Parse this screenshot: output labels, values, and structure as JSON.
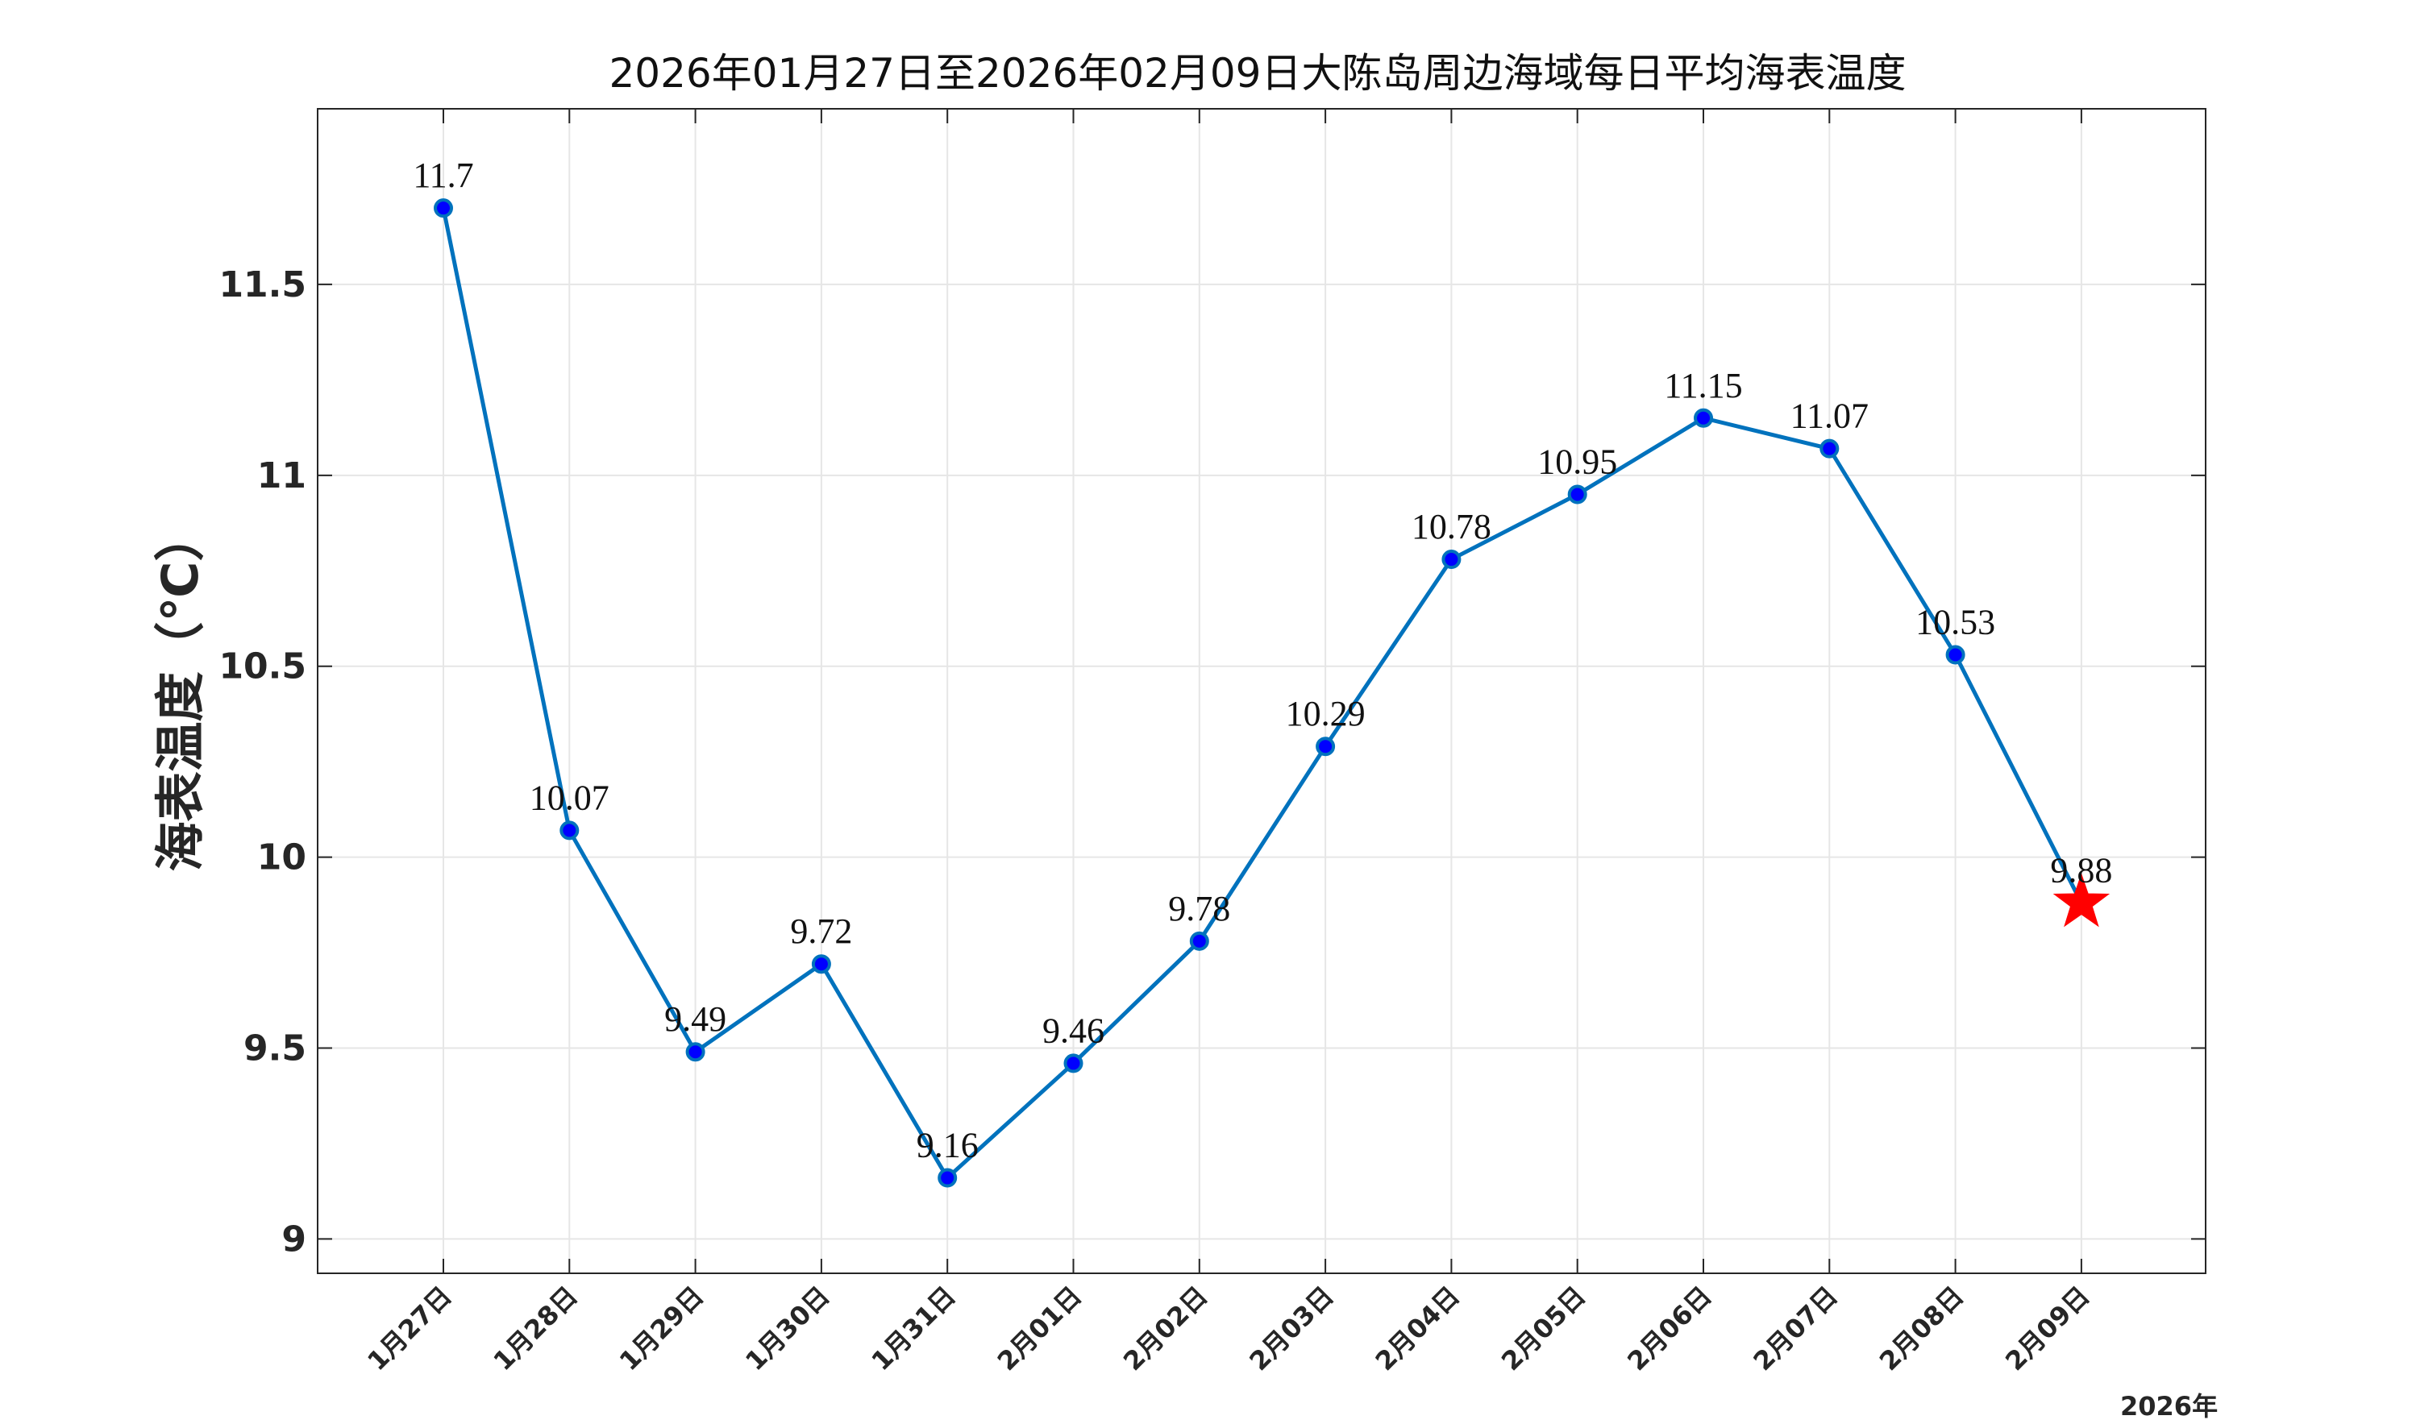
{
  "chart_data": {
    "type": "line",
    "title": "2026年01月27日至2026年02月09日大陈岛周边海域每日平均海表温度",
    "ylabel": "海表温度（℃）",
    "year_label": "2026年",
    "categories": [
      "1月27日",
      "1月28日",
      "1月29日",
      "1月30日",
      "1月31日",
      "2月01日",
      "2月02日",
      "2月03日",
      "2月04日",
      "2月05日",
      "2月06日",
      "2月07日",
      "2月08日",
      "2月09日"
    ],
    "values": [
      11.7,
      10.07,
      9.49,
      9.72,
      9.16,
      9.46,
      9.78,
      10.29,
      10.78,
      10.95,
      11.15,
      11.07,
      10.53,
      9.88
    ],
    "data_labels": [
      "11.7",
      "10.07",
      "9.49",
      "9.72",
      "9.16",
      "9.46",
      "9.78",
      "10.29",
      "10.78",
      "10.95",
      "11.15",
      "11.07",
      "10.53",
      "9.88"
    ],
    "ylim": [
      8.91,
      11.96
    ],
    "yticks": [
      9,
      9.5,
      10,
      10.5,
      11,
      11.5
    ],
    "ytick_labels": [
      "9",
      "9.5",
      "10",
      "10.5",
      "11",
      "11.5"
    ],
    "grid": true,
    "line_color": "#0072BD",
    "marker_color": "#0000FF",
    "highlight_color": "#FF0000",
    "highlight_marker": "star",
    "highlight_index": 13
  }
}
